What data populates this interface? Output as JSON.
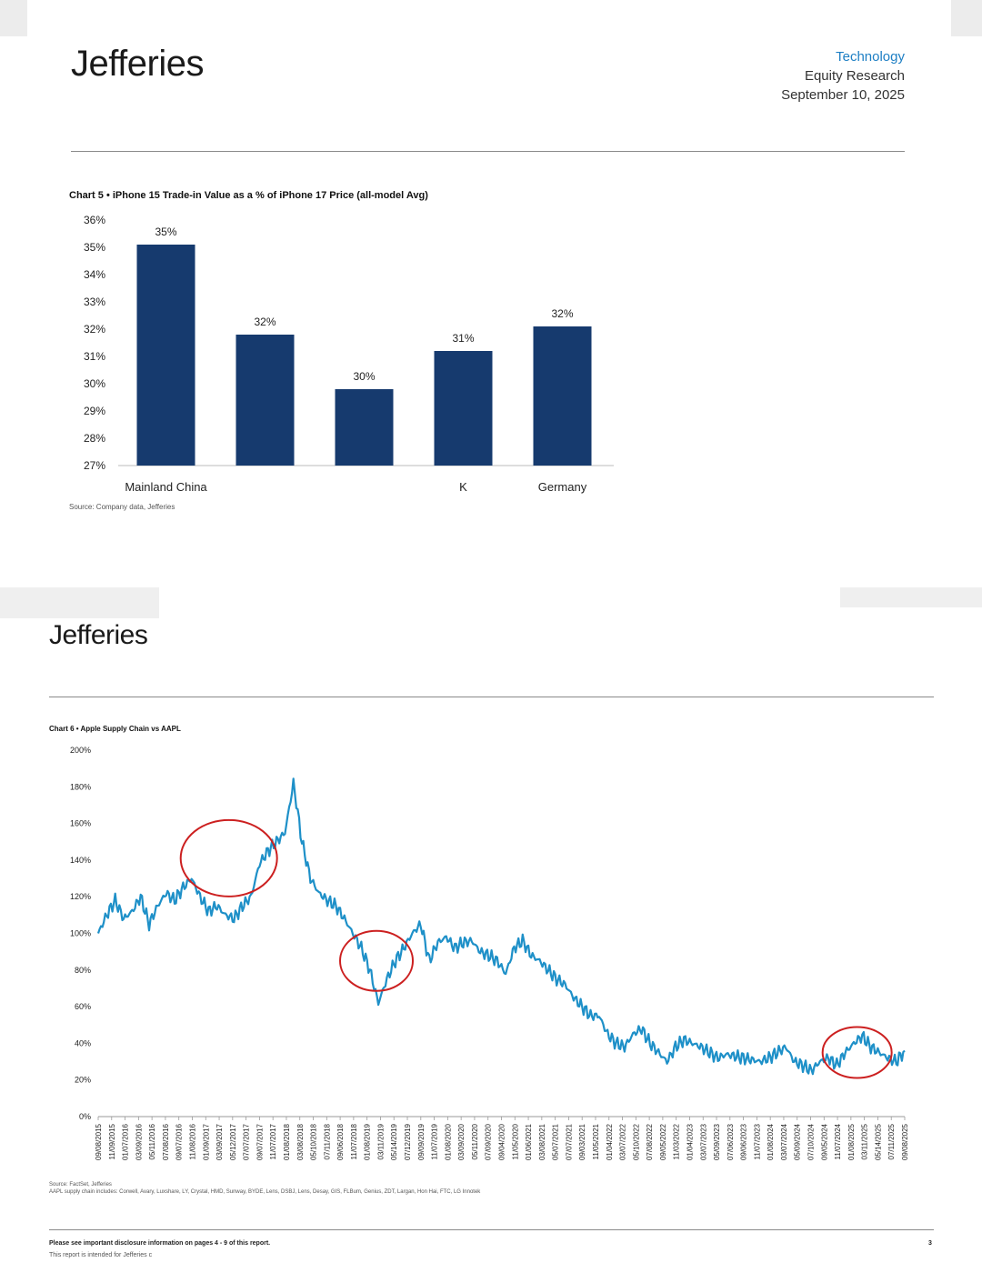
{
  "page1": {
    "logo": "Jefferies",
    "sector": "Technology",
    "doc_type": "Equity Research",
    "date": "September 10, 2025",
    "chart_title": "Chart 5 • iPhone 15 Trade-in Value as a % of iPhone 17 Price (all-model Avg)",
    "source": "Source: Company data, Jefferies"
  },
  "page2": {
    "logo": "Jefferies",
    "chart_title": "Chart 6 • Apple Supply Chain vs AAPL",
    "source_line1": "Source: FactSet, Jefferies",
    "source_line2": "AAPL supply chain includes: Corwell, Avary, Luxshare, LY, Crystal, HMD, Sunway, BYDE, Lens, DSBJ, Lens, Desay, GIS, FLBum, Genius, ZDT, Largan, Hon Hai, FTC, LG Innotek",
    "disclosure": "Please see important disclosure information on pages 4 - 9 of this report.",
    "intended": "This report is intended for Jefferies c",
    "page_number": "3"
  },
  "colors": {
    "bar": "#163a6e",
    "line": "#1e90c8",
    "circle": "#cc2020",
    "accent": "#1e7fc4"
  },
  "chart_data": [
    {
      "type": "bar",
      "title": "Chart 5 • iPhone 15 Trade-in Value as a % of iPhone 17 Price (all-model Avg)",
      "categories": [
        "Mainland China",
        "",
        "",
        "K",
        "Germany"
      ],
      "values": [
        35.1,
        31.8,
        29.8,
        31.2,
        32.1
      ],
      "data_labels": [
        "35%",
        "32%",
        "30%",
        "31%",
        "32%"
      ],
      "ylim": [
        27,
        36
      ],
      "yticks": [
        "27%",
        "28%",
        "29%",
        "30%",
        "31%",
        "32%",
        "33%",
        "34%",
        "35%",
        "36%"
      ],
      "xlabel": "",
      "ylabel": ""
    },
    {
      "type": "line",
      "title": "Chart 6 • Apple Supply Chain vs AAPL",
      "ylim": [
        0,
        200
      ],
      "yticks": [
        "0%",
        "20%",
        "40%",
        "60%",
        "80%",
        "100%",
        "120%",
        "140%",
        "160%",
        "180%",
        "200%"
      ],
      "x_tick_labels": [
        "09/08/2015",
        "11/09/2015",
        "01/07/2016",
        "03/09/2016",
        "05/11/2016",
        "07/08/2016",
        "09/07/2016",
        "11/08/2016",
        "01/09/2017",
        "03/09/2017",
        "05/12/2017",
        "07/07/2017",
        "09/07/2017",
        "11/07/2017",
        "01/08/2018",
        "03/08/2018",
        "05/10/2018",
        "07/11/2018",
        "09/06/2018",
        "11/07/2018",
        "01/08/2019",
        "03/11/2019",
        "05/14/2019",
        "07/12/2019",
        "09/09/2019",
        "11/07/2019",
        "01/08/2020",
        "03/09/2020",
        "05/11/2020",
        "07/09/2020",
        "09/04/2020",
        "11/05/2020",
        "01/06/2021",
        "03/08/2021",
        "05/07/2021",
        "07/07/2021",
        "09/03/2021",
        "11/05/2021",
        "01/04/2022",
        "03/07/2022",
        "05/10/2022",
        "07/08/2022",
        "09/05/2022",
        "11/03/2022",
        "01/04/2023",
        "03/07/2023",
        "05/09/2023",
        "07/06/2023",
        "09/06/2023",
        "11/07/2023",
        "01/08/2024",
        "03/07/2024",
        "05/09/2024",
        "07/10/2024",
        "09/05/2024",
        "11/07/2024",
        "01/08/2025",
        "03/11/2025",
        "05/14/2025",
        "07/11/2025",
        "09/08/2025"
      ],
      "series": [
        {
          "name": "Apple Supply Chain vs AAPL",
          "values": [
            100,
            110,
            118,
            108,
            112,
            120,
            105,
            115,
            122,
            118,
            125,
            130,
            120,
            112,
            115,
            110,
            108,
            115,
            120,
            138,
            145,
            150,
            155,
            182,
            150,
            130,
            122,
            118,
            115,
            108,
            100,
            92,
            80,
            62,
            75,
            85,
            92,
            100,
            105,
            85,
            95,
            98,
            92,
            95,
            96,
            90,
            88,
            85,
            78,
            92,
            96,
            88,
            85,
            80,
            75,
            72,
            65,
            60,
            55,
            55,
            45,
            40,
            38,
            45,
            48,
            40,
            35,
            30,
            38,
            42,
            40,
            38,
            35,
            32,
            34,
            33,
            32,
            31,
            30,
            32,
            35,
            38,
            30,
            28,
            25,
            30,
            32,
            28,
            35,
            40,
            44,
            38,
            35,
            32,
            30,
            36
          ]
        }
      ],
      "annotations": [
        "circle around 2017 rally",
        "circle around 2019 rebound",
        "circle around 2025 rebound"
      ]
    }
  ]
}
